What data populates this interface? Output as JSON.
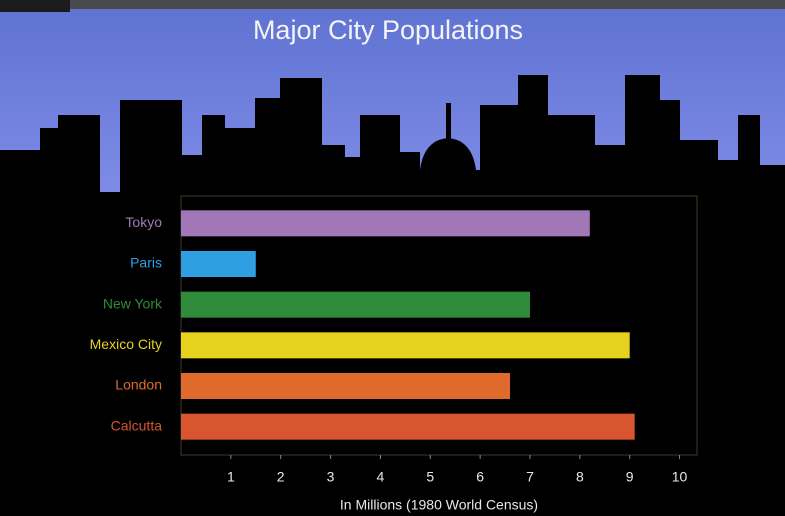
{
  "chart_data": {
    "type": "barh",
    "title": "Major City Populations",
    "categories": [
      "Tokyo",
      "Paris",
      "New York",
      "Mexico City",
      "London",
      "Calcutta"
    ],
    "values": [
      8.2,
      1.5,
      7.0,
      9.0,
      6.6,
      9.1
    ],
    "colors": [
      "#a277b8",
      "#2f9fe2",
      "#2f8a3a",
      "#e6d11e",
      "#e06a2c",
      "#d9552f"
    ],
    "xlabel": "In Millions (1980 World Census)",
    "xlim": [
      0,
      10.35
    ],
    "xticks": [
      1,
      2,
      3,
      4,
      5,
      6,
      7,
      8,
      9,
      10
    ]
  }
}
